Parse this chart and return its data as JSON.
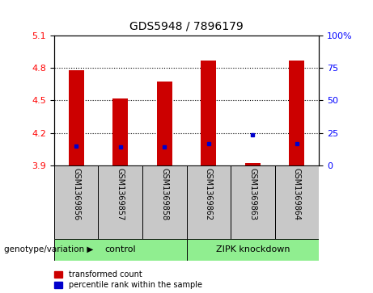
{
  "title": "GDS5948 / 7896179",
  "samples": [
    "GSM1369856",
    "GSM1369857",
    "GSM1369858",
    "GSM1369862",
    "GSM1369863",
    "GSM1369864"
  ],
  "red_values": [
    4.78,
    4.52,
    4.67,
    4.87,
    3.92,
    4.87
  ],
  "blue_values": [
    4.08,
    4.07,
    4.07,
    4.1,
    4.18,
    4.1
  ],
  "y_min": 3.9,
  "y_max": 5.1,
  "y_ticks": [
    3.9,
    4.2,
    4.5,
    4.8,
    5.1
  ],
  "y2_ticks": [
    0,
    25,
    50,
    75,
    100
  ],
  "group_label": "genotype/variation",
  "legend_red": "transformed count",
  "legend_blue": "percentile rank within the sample",
  "bar_width": 0.35,
  "red_color": "#CC0000",
  "blue_color": "#0000CC",
  "background_label": "#c8c8c8",
  "background_group": "#90EE90",
  "grid_ticks": [
    4.2,
    4.5,
    4.8
  ],
  "group_starts": [
    0,
    3
  ],
  "group_ends": [
    2,
    5
  ],
  "group_labels": [
    "control",
    "ZIPK knockdown"
  ]
}
